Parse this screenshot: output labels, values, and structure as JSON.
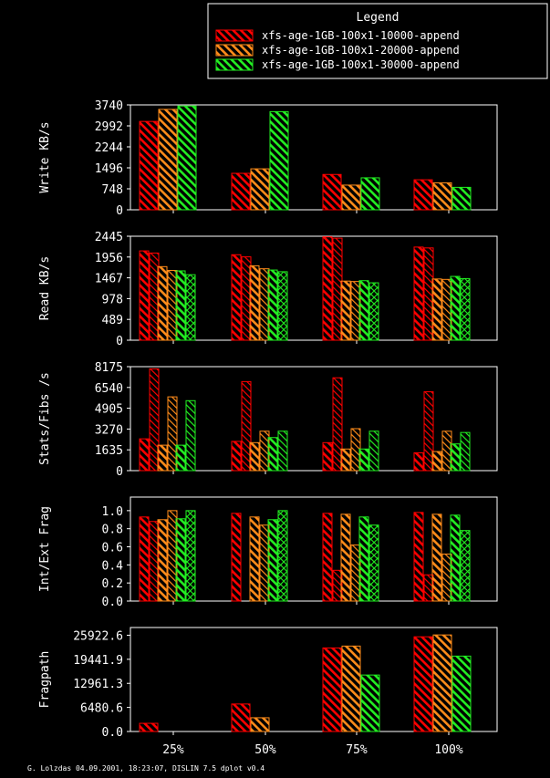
{
  "legend": {
    "title": "Legend",
    "entries": [
      {
        "name": "xfs-age-1GB-100x1-10000-append",
        "color": "#ff0000"
      },
      {
        "name": "xfs-age-1GB-100x1-20000-append",
        "color": "#ff8c1a"
      },
      {
        "name": "xfs-age-1GB-100x1-30000-append",
        "color": "#22ee22"
      }
    ]
  },
  "footer": "G. Lolzdas 04.09.2001, 18:23:07, DISLIN 7.5 dplot v0.4",
  "chart_data": [
    {
      "type": "bar",
      "ylabel": "Write KB/s",
      "categories": [
        "25%",
        "50%",
        "75%",
        "100%"
      ],
      "ylim": [
        0,
        3740
      ],
      "yticks": [
        "0",
        "748",
        "1496",
        "2244",
        "2992",
        "3740"
      ],
      "series": [
        {
          "name": "xfs-age-1GB-100x1-10000-append",
          "values": [
            3150,
            1300,
            1260,
            1070
          ]
        },
        {
          "name": "xfs-age-1GB-100x1-20000-append",
          "values": [
            3580,
            1460,
            880,
            960
          ]
        },
        {
          "name": "xfs-age-1GB-100x1-30000-append",
          "values": [
            3700,
            3500,
            1140,
            800
          ]
        }
      ]
    },
    {
      "type": "bar",
      "ylabel": "Read KB/s",
      "categories": [
        "25%",
        "50%",
        "75%",
        "100%"
      ],
      "ylim": [
        0,
        2445
      ],
      "yticks": [
        "0",
        "489",
        "978",
        "1467",
        "1956",
        "2445"
      ],
      "series": [
        {
          "name": "xfs-age-1GB-100x1-10000-append",
          "values": [
            [
              2100,
              2050
            ],
            [
              2010,
              1960
            ],
            [
              2430,
              2400
            ],
            [
              2190,
              2170
            ]
          ]
        },
        {
          "name": "xfs-age-1GB-100x1-20000-append",
          "values": [
            [
              1730,
              1640
            ],
            [
              1750,
              1680
            ],
            [
              1390,
              1380
            ],
            [
              1440,
              1430
            ]
          ]
        },
        {
          "name": "xfs-age-1GB-100x1-30000-append",
          "values": [
            [
              1630,
              1540
            ],
            [
              1650,
              1610
            ],
            [
              1400,
              1350
            ],
            [
              1500,
              1450
            ]
          ]
        }
      ]
    },
    {
      "type": "bar",
      "ylabel": "Stats/Fibs /s",
      "categories": [
        "25%",
        "50%",
        "75%",
        "100%"
      ],
      "ylim": [
        0,
        8175
      ],
      "yticks": [
        "0",
        "1635",
        "3270",
        "4905",
        "6540",
        "8175"
      ],
      "series": [
        {
          "name": "xfs-age-1GB-100x1-10000-append",
          "values": [
            [
              2500,
              8000
            ],
            [
              2300,
              7000
            ],
            [
              2200,
              7300
            ],
            [
              1400,
              6200
            ]
          ]
        },
        {
          "name": "xfs-age-1GB-100x1-20000-append",
          "values": [
            [
              2000,
              5800
            ],
            [
              2200,
              3100
            ],
            [
              1700,
              3300
            ],
            [
              1500,
              3100
            ]
          ]
        },
        {
          "name": "xfs-age-1GB-100x1-30000-append",
          "values": [
            [
              2000,
              5500
            ],
            [
              2600,
              3100
            ],
            [
              1700,
              3100
            ],
            [
              2100,
              3000
            ]
          ]
        }
      ]
    },
    {
      "type": "bar",
      "ylabel": "Int/Ext Frag",
      "categories": [
        "25%",
        "50%",
        "75%",
        "100%"
      ],
      "ylim": [
        0,
        1.15
      ],
      "yticks": [
        "0.0",
        "0.2",
        "0.4",
        "0.6",
        "0.8",
        "1.0"
      ],
      "series": [
        {
          "name": "xfs-age-1GB-100x1-10000-append",
          "values": [
            [
              0.93,
              0.88
            ],
            [
              0.97,
              0.0
            ],
            [
              0.97,
              0.34
            ],
            [
              0.98,
              0.29
            ]
          ]
        },
        {
          "name": "xfs-age-1GB-100x1-20000-append",
          "values": [
            [
              0.9,
              1.0
            ],
            [
              0.93,
              0.84
            ],
            [
              0.96,
              0.62
            ],
            [
              0.96,
              0.52
            ]
          ]
        },
        {
          "name": "xfs-age-1GB-100x1-30000-append",
          "values": [
            [
              0.91,
              1.0
            ],
            [
              0.9,
              1.0
            ],
            [
              0.93,
              0.84
            ],
            [
              0.95,
              0.78
            ]
          ]
        }
      ]
    },
    {
      "type": "bar",
      "ylabel": "Fragpath",
      "categories": [
        "25%",
        "50%",
        "75%",
        "100%"
      ],
      "ylim": [
        0,
        28000
      ],
      "yticks": [
        "0.0",
        "6480.6",
        "12961.3",
        "19441.9",
        "25922.6"
      ],
      "series": [
        {
          "name": "xfs-age-1GB-100x1-10000-append",
          "values": [
            2200,
            7400,
            22500,
            25500
          ]
        },
        {
          "name": "xfs-age-1GB-100x1-20000-append",
          "values": [
            0,
            3700,
            23000,
            26000
          ]
        },
        {
          "name": "xfs-age-1GB-100x1-30000-append",
          "values": [
            0,
            0,
            15200,
            20300
          ]
        }
      ]
    }
  ]
}
